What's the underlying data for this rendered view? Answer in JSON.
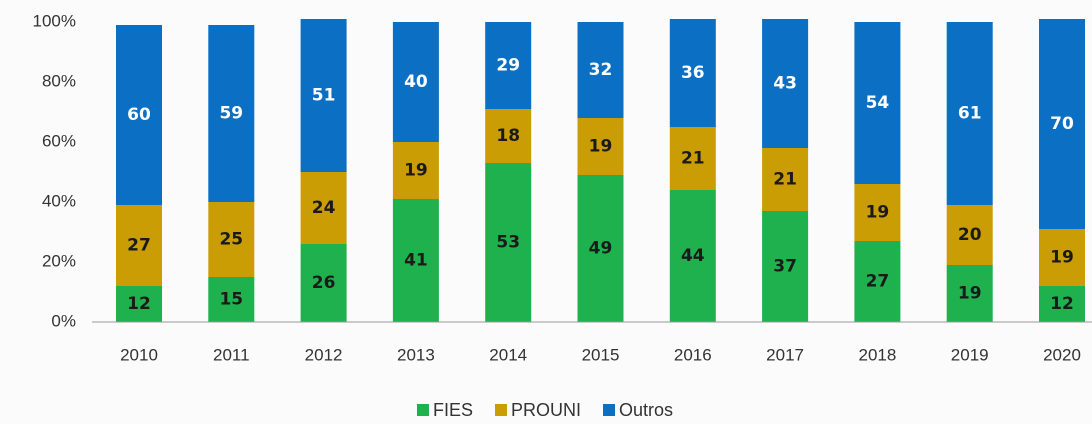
{
  "chart_data": {
    "type": "bar",
    "stacked": true,
    "categories": [
      "2010",
      "2011",
      "2012",
      "2013",
      "2014",
      "2015",
      "2016",
      "2017",
      "2018",
      "2019",
      "2020"
    ],
    "series": [
      {
        "name": "FIES",
        "color": "#1fb14e",
        "values": [
          12,
          15,
          26,
          41,
          53,
          49,
          44,
          37,
          27,
          19,
          12
        ]
      },
      {
        "name": "PROUNI",
        "color": "#c99d03",
        "values": [
          27,
          25,
          24,
          19,
          18,
          19,
          21,
          21,
          19,
          20,
          19
        ]
      },
      {
        "name": "Outros",
        "color": "#0b6fc3",
        "values": [
          60,
          59,
          51,
          40,
          29,
          32,
          36,
          43,
          54,
          61,
          70
        ]
      }
    ],
    "ylim": [
      0,
      100
    ],
    "yticks": [
      {
        "value": 0,
        "label": "0%"
      },
      {
        "value": 20,
        "label": "20%"
      },
      {
        "value": 40,
        "label": "40%"
      },
      {
        "value": 60,
        "label": "60%"
      },
      {
        "value": 80,
        "label": "80%"
      },
      {
        "value": 100,
        "label": "100%"
      }
    ],
    "legend": "bottom",
    "grid": false
  }
}
